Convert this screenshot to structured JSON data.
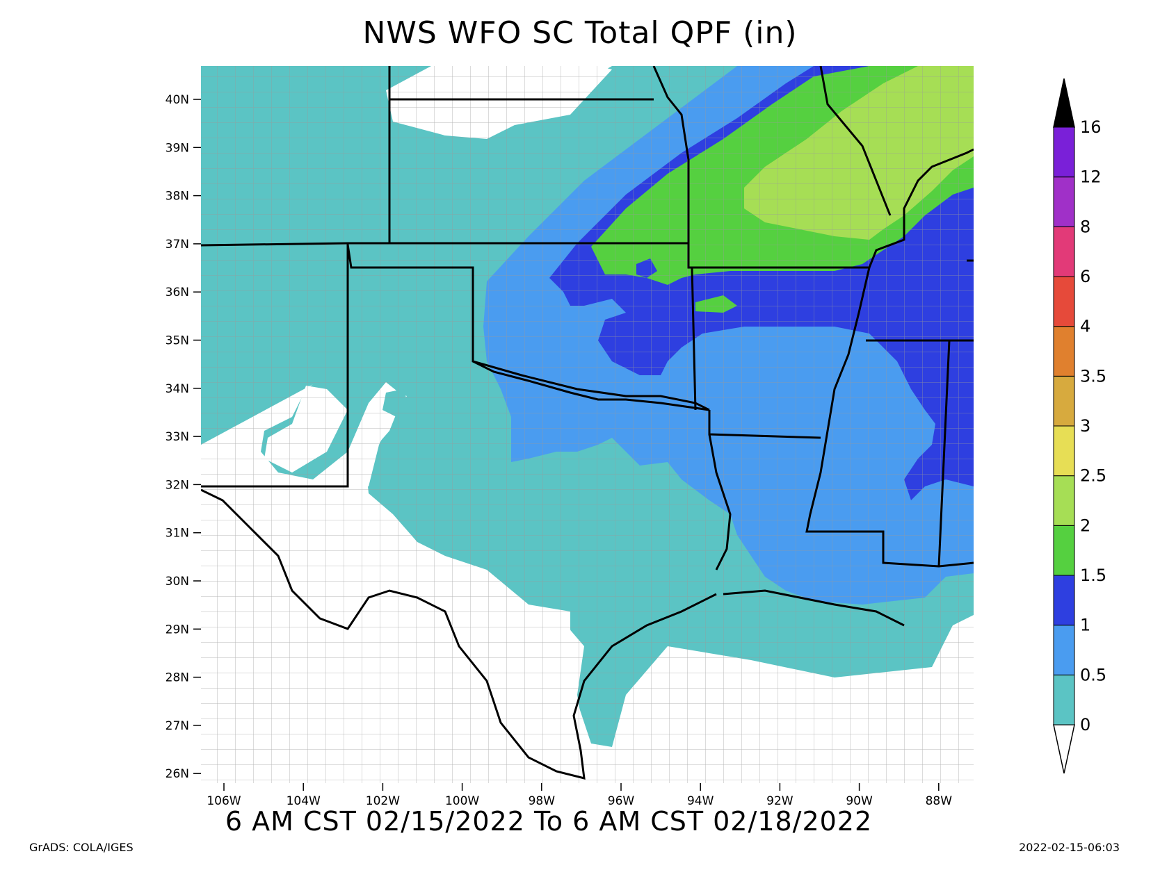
{
  "title": "NWS WFO SC Total QPF (in)",
  "subtitle": "6 AM CST 02/15/2022 To 6 AM CST 02/18/2022",
  "credit": "GrADS: COLA/IGES",
  "timestamp": "2022-02-15-06:03",
  "map": {
    "lat_range": [
      26,
      40.7
    ],
    "lon_range": [
      -106.7,
      -87.3
    ],
    "lat_ticks": [
      "40N",
      "39N",
      "38N",
      "37N",
      "36N",
      "35N",
      "34N",
      "33N",
      "32N",
      "31N",
      "30N",
      "29N",
      "28N",
      "27N",
      "26N"
    ],
    "lon_ticks": [
      "106W",
      "104W",
      "102W",
      "100W",
      "98W",
      "96W",
      "94W",
      "92W",
      "90W",
      "88W"
    ],
    "region_colors": {
      "no_precip": "#ffffff",
      "band_0_0_5": "#5bc4c4",
      "band_0_5_1": "#4a9cf0",
      "band_1_1_5": "#2e3fe0",
      "band_1_5_2": "#55d040",
      "band_2_2_5": "#a6de55"
    }
  },
  "legend": {
    "levels": [
      "0",
      "0.5",
      "1",
      "1.5",
      "2",
      "2.5",
      "3",
      "3.5",
      "4",
      "6",
      "8",
      "12",
      "16"
    ],
    "colors": [
      "#5bc4c4",
      "#4a9cf0",
      "#2e3fe0",
      "#55d040",
      "#a6de55",
      "#e7de55",
      "#d7aa3e",
      "#e0802e",
      "#e64a3a",
      "#e23a78",
      "#a030c8",
      "#7a20d8"
    ],
    "under_color": "#ffffff",
    "over_color": "#000000"
  }
}
